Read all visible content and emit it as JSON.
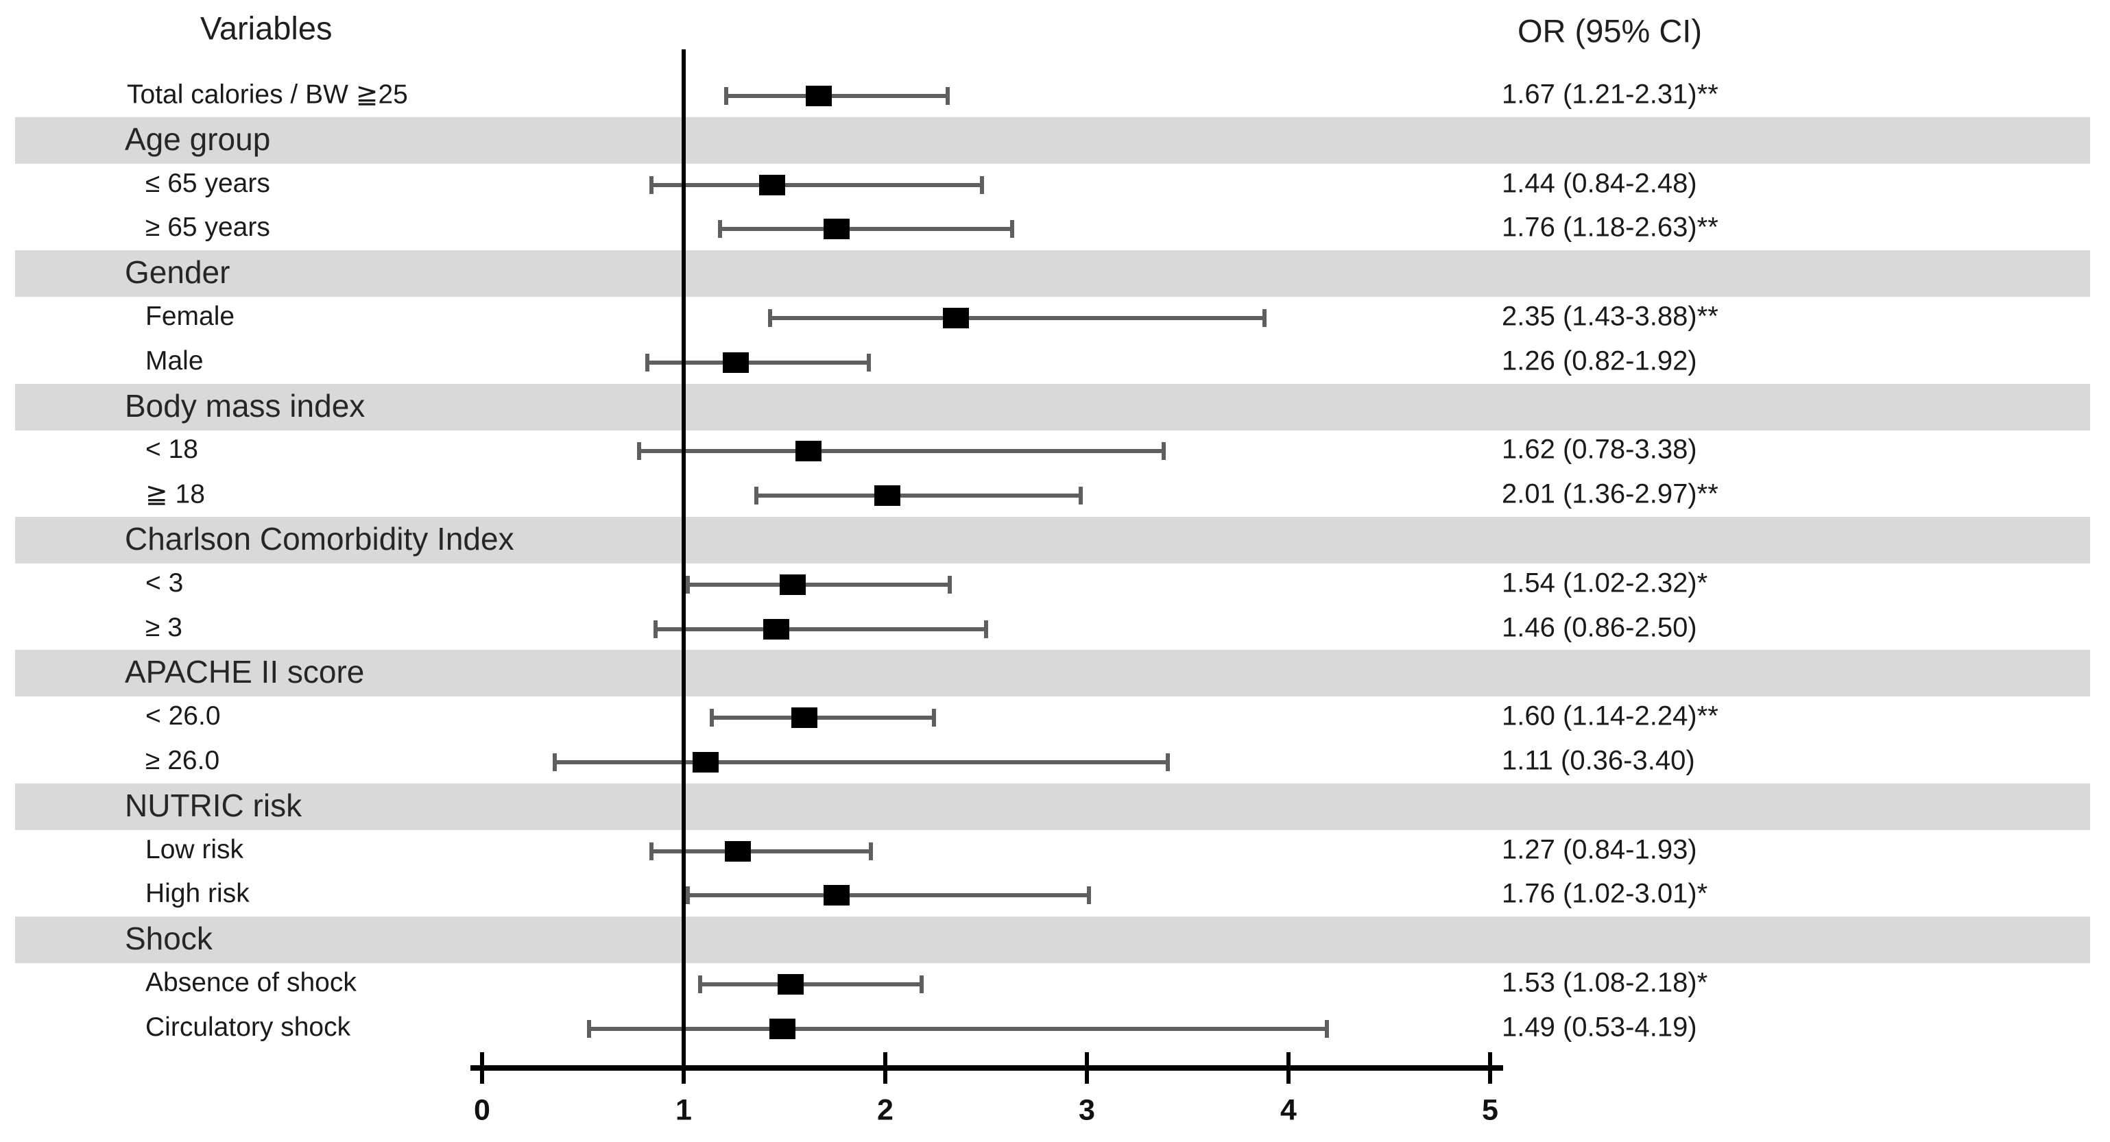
{
  "header": {
    "variables": "Variables",
    "or_ci": "OR (95% CI)"
  },
  "chart_data": {
    "type": "forest",
    "variables_column_header": "Variables",
    "or_column_header": "OR (95% CI)",
    "x_axis": {
      "min": 0,
      "max": 5,
      "ticks": [
        "0",
        "1",
        "2",
        "3",
        "4",
        "5"
      ],
      "reference_line": 1
    },
    "colors": {
      "band": "#d9d9d9",
      "marker": "#000000",
      "ci_line": "#5f5f5f",
      "text": "#1a1a1a"
    },
    "rows": [
      {
        "kind": "item",
        "label": "Total calories / BW ≧25",
        "indent": 0,
        "or": 1.67,
        "ci_low": 1.21,
        "ci_high": 2.31,
        "or_text": "1.67 (1.21-2.31)**"
      },
      {
        "kind": "group",
        "label": "Age group"
      },
      {
        "kind": "item",
        "label": "≤ 65 years",
        "indent": 1,
        "or": 1.44,
        "ci_low": 0.84,
        "ci_high": 2.48,
        "or_text": "1.44 (0.84-2.48)"
      },
      {
        "kind": "item",
        "label": "≥ 65 years",
        "indent": 1,
        "or": 1.76,
        "ci_low": 1.18,
        "ci_high": 2.63,
        "or_text": "1.76 (1.18-2.63)**"
      },
      {
        "kind": "group",
        "label": "Gender"
      },
      {
        "kind": "item",
        "label": "Female",
        "indent": 1,
        "or": 2.35,
        "ci_low": 1.43,
        "ci_high": 3.88,
        "or_text": "2.35 (1.43-3.88)**"
      },
      {
        "kind": "item",
        "label": "Male",
        "indent": 1,
        "or": 1.26,
        "ci_low": 0.82,
        "ci_high": 1.92,
        "or_text": "1.26 (0.82-1.92)"
      },
      {
        "kind": "group",
        "label": "Body mass index"
      },
      {
        "kind": "item",
        "label": "< 18",
        "indent": 1,
        "or": 1.62,
        "ci_low": 0.78,
        "ci_high": 3.38,
        "or_text": "1.62 (0.78-3.38)"
      },
      {
        "kind": "item",
        "label": "≧ 18",
        "indent": 1,
        "or": 2.01,
        "ci_low": 1.36,
        "ci_high": 2.97,
        "or_text": "2.01 (1.36-2.97)**"
      },
      {
        "kind": "group",
        "label": "Charlson Comorbidity Index"
      },
      {
        "kind": "item",
        "label": "< 3",
        "indent": 1,
        "or": 1.54,
        "ci_low": 1.02,
        "ci_high": 2.32,
        "or_text": "1.54 (1.02-2.32)*"
      },
      {
        "kind": "item",
        "label": "≥ 3",
        "indent": 1,
        "or": 1.46,
        "ci_low": 0.86,
        "ci_high": 2.5,
        "or_text": "1.46 (0.86-2.50)"
      },
      {
        "kind": "group",
        "label": "APACHE II score"
      },
      {
        "kind": "item",
        "label": "< 26.0",
        "indent": 1,
        "or": 1.6,
        "ci_low": 1.14,
        "ci_high": 2.24,
        "or_text": "1.60 (1.14-2.24)**"
      },
      {
        "kind": "item",
        "label": "≥ 26.0",
        "indent": 1,
        "or": 1.11,
        "ci_low": 0.36,
        "ci_high": 3.4,
        "or_text": "1.11 (0.36-3.40)"
      },
      {
        "kind": "group",
        "label": "NUTRIC risk"
      },
      {
        "kind": "item",
        "label": "Low risk",
        "indent": 1,
        "or": 1.27,
        "ci_low": 0.84,
        "ci_high": 1.93,
        "or_text": "1.27 (0.84-1.93)"
      },
      {
        "kind": "item",
        "label": "High risk",
        "indent": 1,
        "or": 1.76,
        "ci_low": 1.02,
        "ci_high": 3.01,
        "or_text": "1.76 (1.02-3.01)*"
      },
      {
        "kind": "group",
        "label": "Shock"
      },
      {
        "kind": "item",
        "label": "Absence of shock",
        "indent": 1,
        "or": 1.53,
        "ci_low": 1.08,
        "ci_high": 2.18,
        "or_text": "1.53 (1.08-2.18)*"
      },
      {
        "kind": "item",
        "label": "Circulatory shock",
        "indent": 1,
        "or": 1.49,
        "ci_low": 0.53,
        "ci_high": 4.19,
        "or_text": "1.49 (0.53-4.19)"
      }
    ]
  }
}
